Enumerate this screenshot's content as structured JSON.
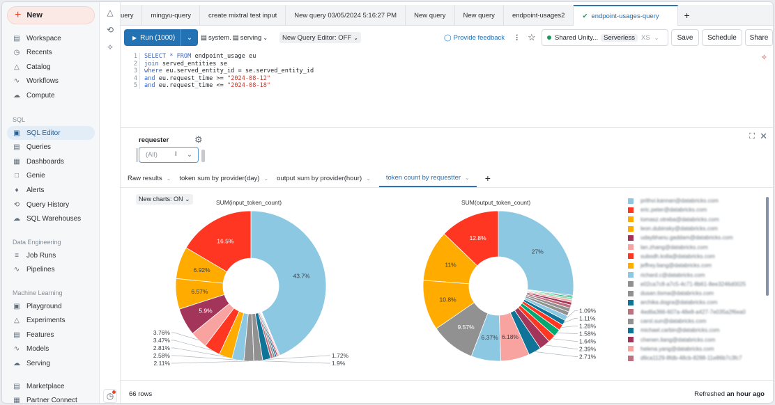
{
  "sidebar": {
    "new_label": "New",
    "items": [
      {
        "label": "Workspace",
        "icon": "workspace-icon"
      },
      {
        "label": "Recents",
        "icon": "clock-icon"
      },
      {
        "label": "Catalog",
        "icon": "catalog-icon"
      },
      {
        "label": "Workflows",
        "icon": "workflows-icon"
      },
      {
        "label": "Compute",
        "icon": "cloud-icon"
      }
    ],
    "sql_heading": "SQL",
    "sql_items": [
      {
        "label": "SQL Editor",
        "active": true
      },
      {
        "label": "Queries"
      },
      {
        "label": "Dashboards"
      },
      {
        "label": "Genie"
      },
      {
        "label": "Alerts"
      },
      {
        "label": "Query History"
      },
      {
        "label": "SQL Warehouses"
      }
    ],
    "de_heading": "Data Engineering",
    "de_items": [
      {
        "label": "Job Runs"
      },
      {
        "label": "Pipelines"
      }
    ],
    "ml_heading": "Machine Learning",
    "ml_items": [
      {
        "label": "Playground"
      },
      {
        "label": "Experiments"
      },
      {
        "label": "Features"
      },
      {
        "label": "Models"
      },
      {
        "label": "Serving"
      }
    ],
    "bottom_items": [
      {
        "label": "Marketplace"
      },
      {
        "label": "Partner Connect"
      }
    ]
  },
  "tabs": [
    "uery",
    "mingyu-query",
    "create mixtral test input",
    "New query 03/05/2024 5:16:27 PM",
    "New query",
    "New query",
    "endpoint-usages2",
    "endpoint-usages-query"
  ],
  "toolbar": {
    "run": "Run (1000)",
    "catalog": "system.",
    "schema": "serving",
    "editor_toggle": "New Query Editor: OFF",
    "feedback": "Provide feedback",
    "warehouse": "Shared Unity...",
    "warehouse_type": "Serverless",
    "size": "XS",
    "save": "Save",
    "schedule": "Schedule",
    "share": "Share"
  },
  "editor": {
    "lines": [
      [
        {
          "t": "SELECT * FROM",
          "k": "kw"
        },
        {
          "t": " endpoint_usage eu"
        }
      ],
      [
        {
          "t": "join",
          "k": "kw"
        },
        {
          "t": " served_entities se"
        }
      ],
      [
        {
          "t": "where",
          "k": "kw"
        },
        {
          "t": " eu.served_entity_id = se.served_entity_id"
        }
      ],
      [
        {
          "t": "and",
          "k": "kw"
        },
        {
          "t": " eu.request_time >= "
        },
        {
          "t": "\"2024-08-12\"",
          "k": "str"
        }
      ],
      [
        {
          "t": "and",
          "k": "kw"
        },
        {
          "t": " eu.request_time <= "
        },
        {
          "t": "\"2024-08-18\"",
          "k": "str"
        }
      ]
    ]
  },
  "filter": {
    "label": "requester",
    "value": "(All)"
  },
  "result_tabs": [
    "Raw results",
    "token sum by provider(day)",
    "output sum by provider(hour)",
    "token count by requestter"
  ],
  "new_charts": "New charts: ON",
  "colors": {
    "blue": "#8dc8e3",
    "red": "#ff3621",
    "orange": "#ffab00",
    "maroon": "#a4355a",
    "pink": "#f8a3a0",
    "gray": "#919191",
    "teal": "#0f7497",
    "mauve": "#bf7080",
    "green": "#00a972",
    "lightgreen": "#9fd8b4",
    "accent": "#2272b4"
  },
  "chart_data": [
    {
      "type": "pie",
      "title": "SUM(input_token_count)",
      "donut": true,
      "values": [
        43.7,
        16.5,
        6.92,
        6.57,
        5.9,
        3.76,
        3.47,
        2.81,
        2.58,
        2.11,
        1.9,
        1.72,
        0.55,
        0.45,
        0.35,
        0.3,
        0.25,
        0.16
      ],
      "colors": [
        "#8dc8e3",
        "#ff3621",
        "#ffab00",
        "#ffab00",
        "#a4355a",
        "#f8a3a0",
        "#ff3621",
        "#ffab00",
        "#8dc8e3",
        "#919191",
        "#919191",
        "#0f7497",
        "#bf7080",
        "#919191",
        "#0f7497",
        "#a4355a",
        "#f8a3a0",
        "#bf7080"
      ]
    },
    {
      "type": "pie",
      "title": "SUM(output_token_count)",
      "donut": true,
      "values": [
        27,
        12.8,
        11,
        10.8,
        9.57,
        6.37,
        6.18,
        2.71,
        2.39,
        1.64,
        1.58,
        1.28,
        1.11,
        1.09,
        0.9,
        0.8,
        0.7,
        0.6,
        0.5,
        0.45,
        0.3,
        0.23
      ],
      "colors": [
        "#8dc8e3",
        "#ff3621",
        "#ffab00",
        "#ffab00",
        "#919191",
        "#8dc8e3",
        "#f8a3a0",
        "#0f7497",
        "#a4355a",
        "#ff3621",
        "#00a972",
        "#ff3621",
        "#0f7497",
        "#8dc8e3",
        "#919191",
        "#919191",
        "#bf7080",
        "#a4355a",
        "#f8a3a0",
        "#9fd8b4",
        "#00a972",
        "#919191"
      ]
    }
  ],
  "legend": [
    {
      "name": "prithvi.kannan@databricks.com",
      "color": "#8dc8e3"
    },
    {
      "name": "eric.peter@databricks.com",
      "color": "#ff3621"
    },
    {
      "name": "tomasz.otreba@databricks.com",
      "color": "#ffab00"
    },
    {
      "name": "leon.dubinsky@databricks.com",
      "color": "#ffab00"
    },
    {
      "name": "udaybhanu.gaddam@databricks.com",
      "color": "#a4355a"
    },
    {
      "name": "lan.zhang@databricks.com",
      "color": "#f8a3a0"
    },
    {
      "name": "subodh.kolla@databricks.com",
      "color": "#ff3621"
    },
    {
      "name": "jeffrey.liang@databricks.com",
      "color": "#ffab00"
    },
    {
      "name": "richard.c@databricks.com",
      "color": "#8dc8e3"
    },
    {
      "name": "e02ca7c8-a7c5-4c71-8b61-8ee3246d0025",
      "color": "#919191"
    },
    {
      "name": "dusan.tisma@databricks.com",
      "color": "#919191"
    },
    {
      "name": "archika.dogra@databricks.com",
      "color": "#0f7497"
    },
    {
      "name": "4ed6a366-607a-48e8-a427-7e035a2f6ea0",
      "color": "#bf7080"
    },
    {
      "name": "carol.sun@databricks.com",
      "color": "#919191"
    },
    {
      "name": "michael.carbin@databricks.com",
      "color": "#0f7497"
    },
    {
      "name": "chenen.liang@databricks.com",
      "color": "#a4355a"
    },
    {
      "name": "helena.yang@databricks.com",
      "color": "#f8a3a0"
    },
    {
      "name": "d6ca1129-8fdb-48cb-8288-11e86b7c3fc7",
      "color": "#bf7080"
    }
  ],
  "footer": {
    "rows": "66 rows",
    "refreshed_prefix": "Refreshed",
    "refreshed_time": "an hour ago"
  }
}
